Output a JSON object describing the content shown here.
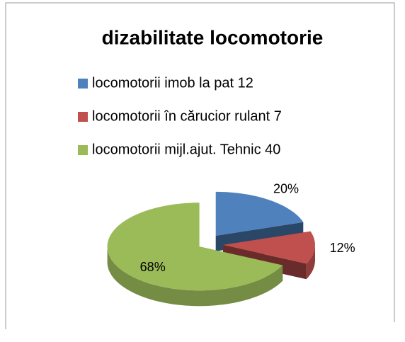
{
  "chart_data": {
    "type": "pie3d",
    "title": "dizabilitate locomotorie",
    "categories": [
      "locomotorii imob la pat 12",
      "locomotorii în cărucior rulant 7",
      "locomotorii mijl.ajut. Tehnic 40"
    ],
    "values": [
      20,
      12,
      68
    ],
    "value_labels": [
      "20%",
      "12%",
      "68%"
    ],
    "colors": [
      "#4f81bd",
      "#c0504d",
      "#9bbb59"
    ],
    "legend": "top"
  }
}
